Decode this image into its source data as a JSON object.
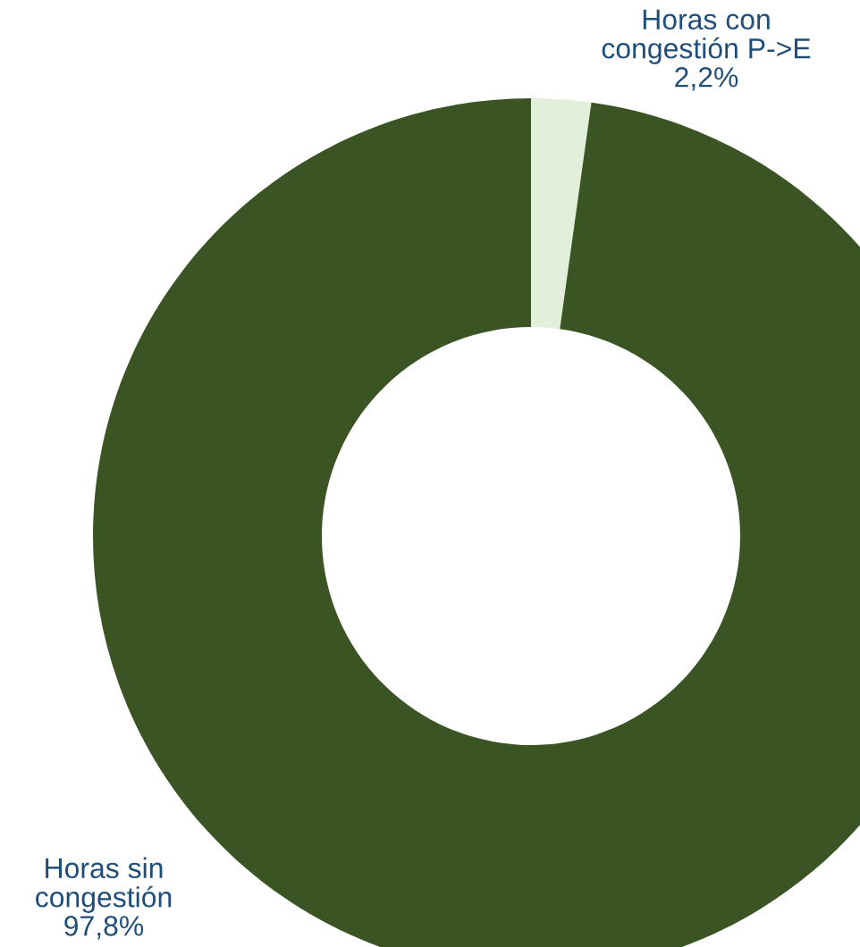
{
  "chart_data": {
    "type": "donut",
    "categories": [
      "Horas con\ncongestión P->E",
      "Horas sin\ncongestión"
    ],
    "values": [
      2.2,
      97.8
    ],
    "value_labels": [
      "2,2%",
      "97,8%"
    ],
    "colors": [
      "#e2efda",
      "#3a5424"
    ],
    "legend": false
  }
}
